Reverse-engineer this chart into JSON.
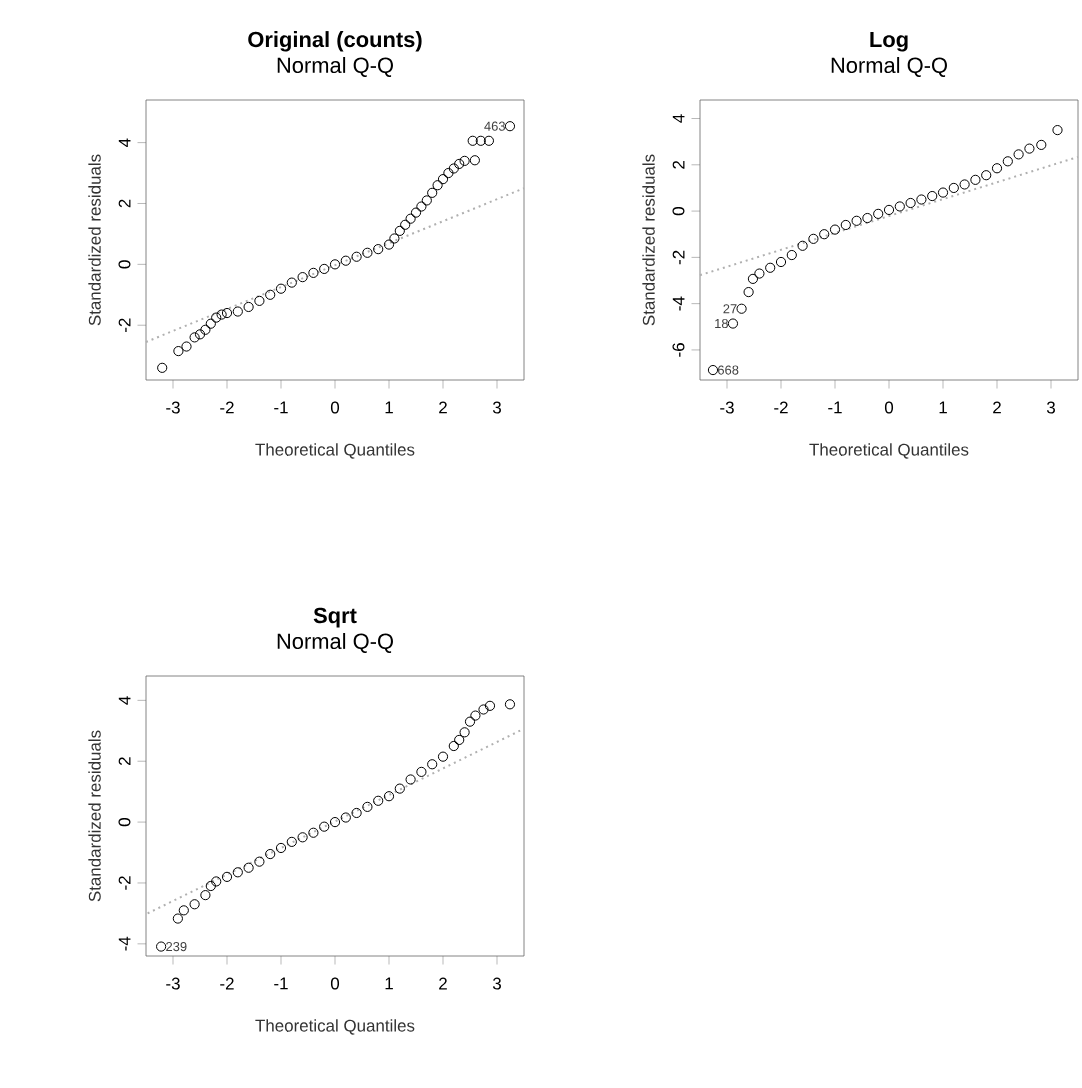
{
  "chart_data": [
    {
      "type": "scatter",
      "title": "Original (counts)",
      "subtitle": "Normal Q-Q",
      "xlabel": "Theoretical Quantiles",
      "ylabel": "Standardized residuals",
      "xlim": [
        -3.5,
        3.5
      ],
      "ylim": [
        -3.8,
        5.4
      ],
      "xticks": [
        -3,
        -2,
        -1,
        0,
        1,
        2,
        3
      ],
      "yticks": [
        -2,
        0,
        2,
        4
      ],
      "series": [
        {
          "marker": "circle",
          "color": "#000000",
          "x": [
            -3.2,
            -2.9,
            -2.75,
            -2.6,
            -2.5,
            -2.4,
            -2.3,
            -2.2,
            -2.1,
            -2.0,
            -1.8,
            -1.6,
            -1.4,
            -1.2,
            -1.0,
            -0.8,
            -0.6,
            -0.4,
            -0.2,
            0,
            0.2,
            0.4,
            0.6,
            0.8,
            1.0,
            1.1,
            1.2,
            1.3,
            1.4,
            1.5,
            1.6,
            1.7,
            1.8,
            1.9,
            2.0,
            2.1,
            2.2,
            2.3,
            2.4,
            2.59,
            2.55,
            2.7,
            2.85,
            3.24
          ],
          "values": [
            -3.4,
            -2.85,
            -2.7,
            -2.4,
            -2.3,
            -2.15,
            -1.95,
            -1.75,
            -1.65,
            -1.6,
            -1.55,
            -1.4,
            -1.2,
            -1.0,
            -0.8,
            -0.6,
            -0.42,
            -0.28,
            -0.15,
            0,
            0.12,
            0.25,
            0.38,
            0.5,
            0.65,
            0.85,
            1.1,
            1.3,
            1.5,
            1.7,
            1.9,
            2.1,
            2.35,
            2.6,
            2.8,
            3.0,
            3.15,
            3.3,
            3.4,
            3.42,
            4.06,
            4.06,
            4.06,
            4.54
          ]
        },
        {
          "type": "line",
          "line_style": "dotted",
          "color": "#b0b0b0",
          "x": [
            -3.5,
            3.5
          ],
          "values": [
            -2.55,
            2.5
          ]
        }
      ],
      "annotations": [
        {
          "text": "463",
          "x": 3.24,
          "y": 4.54
        }
      ]
    },
    {
      "type": "scatter",
      "title": "Log",
      "subtitle": "Normal Q-Q",
      "xlabel": "Theoretical Quantiles",
      "ylabel": "Standardized residuals",
      "xlim": [
        -3.5,
        3.5
      ],
      "ylim": [
        -7.3,
        4.8
      ],
      "xticks": [
        -3,
        -2,
        -1,
        0,
        1,
        2,
        3
      ],
      "yticks": [
        -6,
        -4,
        -2,
        0,
        2,
        4
      ],
      "series": [
        {
          "marker": "circle",
          "color": "#000000",
          "x": [
            -3.26,
            -2.89,
            -2.73,
            -2.6,
            -2.52,
            -2.4,
            -2.2,
            -2.0,
            -1.8,
            -1.6,
            -1.4,
            -1.2,
            -1.0,
            -0.8,
            -0.6,
            -0.4,
            -0.2,
            0,
            0.2,
            0.4,
            0.6,
            0.8,
            1.0,
            1.2,
            1.4,
            1.6,
            1.8,
            2.0,
            2.2,
            2.4,
            2.6,
            2.82,
            3.12
          ],
          "values": [
            -6.87,
            -4.86,
            -4.22,
            -3.5,
            -2.93,
            -2.7,
            -2.45,
            -2.2,
            -1.9,
            -1.5,
            -1.2,
            -1.0,
            -0.8,
            -0.6,
            -0.42,
            -0.3,
            -0.12,
            0.05,
            0.2,
            0.35,
            0.5,
            0.65,
            0.8,
            1.0,
            1.15,
            1.35,
            1.55,
            1.85,
            2.15,
            2.45,
            2.7,
            2.86,
            3.5
          ]
        },
        {
          "type": "line",
          "line_style": "dotted",
          "color": "#b0b0b0",
          "x": [
            -3.5,
            3.5
          ],
          "values": [
            -2.77,
            2.34
          ]
        }
      ],
      "annotations": [
        {
          "text": "27",
          "x": -2.73,
          "y": -4.22
        },
        {
          "text": "18",
          "x": -2.89,
          "y": -4.86
        },
        {
          "text": "668",
          "x": -3.26,
          "y": -6.87
        }
      ]
    },
    {
      "type": "scatter",
      "title": "Sqrt",
      "subtitle": "Normal Q-Q",
      "xlabel": "Theoretical Quantiles",
      "ylabel": "Standardized residuals",
      "xlim": [
        -3.5,
        3.5
      ],
      "ylim": [
        -4.4,
        4.8
      ],
      "xticks": [
        -3,
        -2,
        -1,
        0,
        1,
        2,
        3
      ],
      "yticks": [
        -4,
        -2,
        0,
        2,
        4
      ],
      "series": [
        {
          "marker": "circle",
          "color": "#000000",
          "x": [
            -3.22,
            -2.91,
            -2.8,
            -2.6,
            -2.4,
            -2.3,
            -2.2,
            -2.0,
            -1.8,
            -1.6,
            -1.4,
            -1.2,
            -1.0,
            -0.8,
            -0.6,
            -0.4,
            -0.2,
            0,
            0.2,
            0.4,
            0.6,
            0.8,
            1.0,
            1.2,
            1.4,
            1.6,
            1.8,
            2.0,
            2.2,
            2.3,
            2.4,
            2.5,
            2.6,
            2.75,
            2.87,
            3.24
          ],
          "values": [
            -4.09,
            -3.17,
            -2.9,
            -2.7,
            -2.4,
            -2.1,
            -1.95,
            -1.8,
            -1.65,
            -1.5,
            -1.3,
            -1.05,
            -0.85,
            -0.65,
            -0.5,
            -0.35,
            -0.15,
            0,
            0.15,
            0.3,
            0.5,
            0.7,
            0.85,
            1.1,
            1.4,
            1.65,
            1.9,
            2.15,
            2.5,
            2.7,
            2.95,
            3.3,
            3.5,
            3.7,
            3.82,
            3.87
          ]
        },
        {
          "type": "line",
          "line_style": "dotted",
          "color": "#b0b0b0",
          "x": [
            -3.47,
            3.49
          ],
          "values": [
            -3.0,
            3.06
          ]
        }
      ],
      "annotations": [
        {
          "text": "239",
          "x": -3.22,
          "y": -4.09
        }
      ]
    }
  ]
}
